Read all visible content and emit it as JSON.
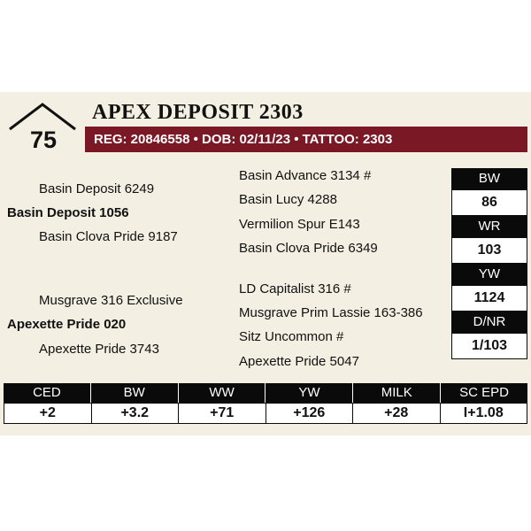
{
  "lot": {
    "number": "75"
  },
  "animal": {
    "name": "APEX DEPOSIT 2303",
    "registration_line": "REG: 20846558 • DOB: 02/11/23 • TATTOO: 2303"
  },
  "pedigree": {
    "sire": "Basin Deposit 1056",
    "sire_sire": "Basin Deposit 6249",
    "sire_dam": "Basin Clova Pride 9187",
    "sire_sire_sire": "Basin Advance 3134 #",
    "sire_sire_dam": "Basin Lucy 4288",
    "sire_dam_sire": "Vermilion Spur E143",
    "sire_dam_dam": "Basin Clova Pride 6349",
    "dam": "Apexette Pride 020",
    "dam_sire": "Musgrave 316 Exclusive",
    "dam_dam": "Apexette Pride 3743",
    "dam_sire_sire": "LD Capitalist 316 #",
    "dam_sire_dam": "Musgrave Prim Lassie 163-386",
    "dam_dam_sire": "Sitz Uncommon #",
    "dam_dam_dam": "Apexette Pride 5047"
  },
  "performance": [
    {
      "label": "BW",
      "value": "86"
    },
    {
      "label": "WR",
      "value": "103"
    },
    {
      "label": "YW",
      "value": "1124"
    },
    {
      "label": "D/NR",
      "value": "1/103"
    }
  ],
  "epds": [
    {
      "label": "CED",
      "value": "+2"
    },
    {
      "label": "BW",
      "value": "+3.2"
    },
    {
      "label": "WW",
      "value": "+71"
    },
    {
      "label": "YW",
      "value": "+126"
    },
    {
      "label": "MILK",
      "value": "+28"
    },
    {
      "label": "SC EPD",
      "value": "I+1.08"
    }
  ],
  "colors": {
    "accent": "#7a1826",
    "card_background": "#f4efe3",
    "header_cells": "#0a0a0a"
  }
}
